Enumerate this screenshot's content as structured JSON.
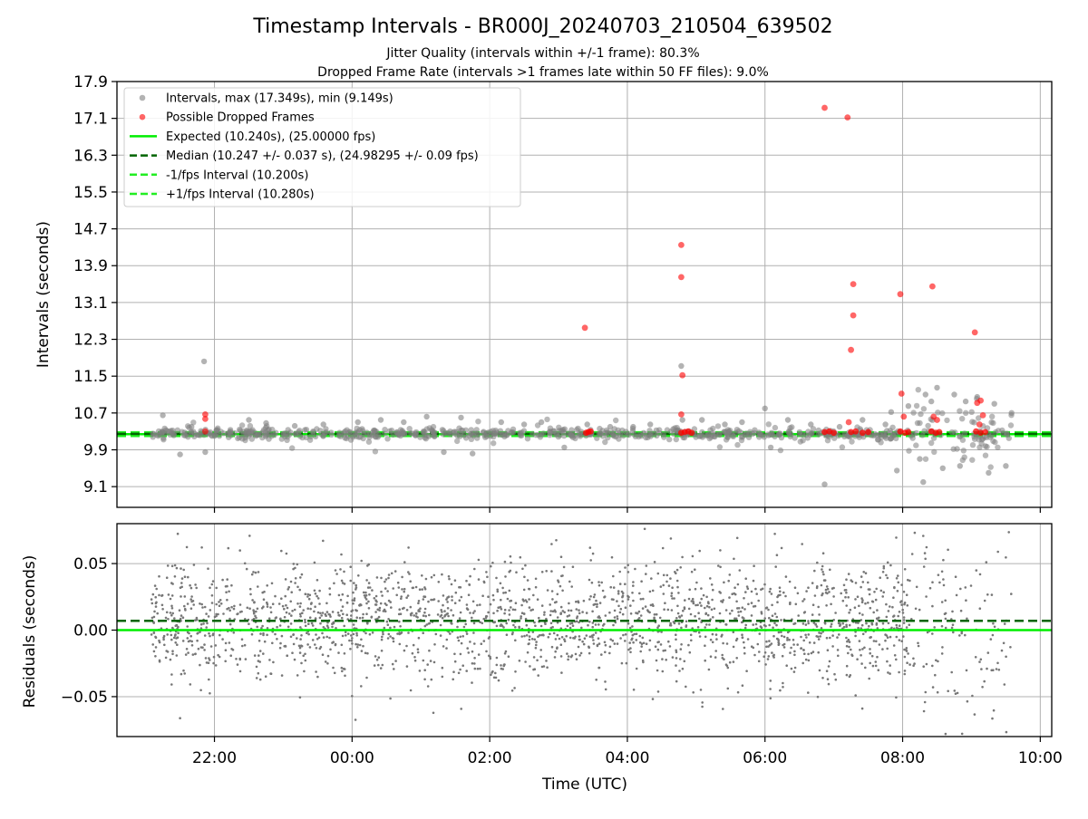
{
  "title": "Timestamp Intervals - BR000J_20240703_210504_639502",
  "subtitle1": "Jitter Quality (intervals within +/-1 frame): 80.3%",
  "subtitle2": "Dropped Frame Rate (intervals >1 frames late within 50 FF files): 9.0%",
  "colors": {
    "intervals": "#808080",
    "dropped": "#ff0000",
    "expected": "#00ee00",
    "median": "#006400",
    "fps_bounds": "#22ee22",
    "grid": "#b0b0b0"
  },
  "chart_data": [
    {
      "type": "scatter",
      "panel": "top",
      "ylabel": "Intervals (seconds)",
      "xlabel": "",
      "ylim": [
        8.65,
        17.9
      ],
      "xlim": [
        "20:35",
        "10:10"
      ],
      "yticks": [
        "9.1",
        "9.9",
        "10.7",
        "11.5",
        "12.3",
        "13.1",
        "13.9",
        "14.7",
        "15.5",
        "16.3",
        "17.1",
        "17.9"
      ],
      "grid": true,
      "legend_position": "top-left",
      "legend": [
        {
          "label": "Intervals, max (17.349s), min (9.149s)",
          "marker": "dot",
          "color": "#808080"
        },
        {
          "label": "Possible Dropped Frames",
          "marker": "dot",
          "color": "#ff0000"
        },
        {
          "label": "Expected (10.240s), (25.00000 fps)",
          "marker": "solid",
          "color": "#00ee00"
        },
        {
          "label": "Median (10.247 +/- 0.037 s), (24.98295 +/- 0.09 fps)",
          "marker": "dashed",
          "color": "#006400"
        },
        {
          "label": "-1/fps Interval (10.200s)",
          "marker": "dashed",
          "color": "#22ee22"
        },
        {
          "label": "+1/fps Interval (10.280s)",
          "marker": "dashed",
          "color": "#22ee22"
        }
      ],
      "lines": {
        "expected": 10.24,
        "median": 10.247,
        "minus_fps": 10.2,
        "plus_fps": 10.28
      },
      "series": [
        {
          "name": "Intervals, max (17.349s), min (9.149s)",
          "points": [
            [
              "21:51",
              11.82
            ],
            [
              "21:30",
              9.8
            ],
            [
              "21:52",
              9.85
            ],
            [
              "21:15",
              10.65
            ],
            [
              "21:40",
              10.4
            ],
            [
              "22:30",
              10.55
            ],
            [
              "22:45",
              10.48
            ],
            [
              "23:10",
              10.42
            ],
            [
              "23:35",
              10.45
            ],
            [
              "00:05",
              10.5
            ],
            [
              "00:25",
              10.55
            ],
            [
              "00:45",
              10.5
            ],
            [
              "01:05",
              10.62
            ],
            [
              "01:20",
              9.85
            ],
            [
              "01:35",
              10.6
            ],
            [
              "01:45",
              9.82
            ],
            [
              "02:10",
              10.5
            ],
            [
              "02:30",
              10.45
            ],
            [
              "02:45",
              10.5
            ],
            [
              "03:05",
              9.95
            ],
            [
              "03:25",
              10.45
            ],
            [
              "03:45",
              10.4
            ],
            [
              "04:05",
              10.4
            ],
            [
              "04:20",
              10.45
            ],
            [
              "04:40",
              10.35
            ],
            [
              "04:47",
              11.72
            ],
            [
              "04:48",
              10.55
            ],
            [
              "05:05",
              10.55
            ],
            [
              "05:25",
              10.45
            ],
            [
              "05:40",
              10.5
            ],
            [
              "06:00",
              10.8
            ],
            [
              "06:05",
              9.95
            ],
            [
              "06:20",
              10.55
            ],
            [
              "06:40",
              10.45
            ],
            [
              "06:52",
              9.15
            ],
            [
              "07:05",
              10.4
            ],
            [
              "07:25",
              10.55
            ],
            [
              "07:45",
              10.45
            ],
            [
              "07:50",
              10.72
            ],
            [
              "07:55",
              9.45
            ],
            [
              "08:05",
              10.85
            ],
            [
              "08:15",
              9.7
            ],
            [
              "08:20",
              11.1
            ],
            [
              "08:25",
              10.95
            ],
            [
              "08:30",
              11.25
            ],
            [
              "08:35",
              9.5
            ],
            [
              "08:45",
              11.1
            ],
            [
              "08:50",
              9.55
            ],
            [
              "08:55",
              10.95
            ],
            [
              "09:05",
              11.05
            ],
            [
              "09:15",
              9.4
            ],
            [
              "09:20",
              10.9
            ],
            [
              "09:30",
              9.55
            ],
            [
              "09:35",
              10.7
            ],
            [
              "08:18",
              9.2
            ]
          ]
        },
        {
          "name": "Possible Dropped Frames",
          "points": [
            [
              "21:52",
              10.67
            ],
            [
              "21:52",
              10.57
            ],
            [
              "21:52",
              10.3
            ],
            [
              "03:23",
              12.55
            ],
            [
              "04:47",
              14.35
            ],
            [
              "04:47",
              13.65
            ],
            [
              "04:48",
              11.52
            ],
            [
              "04:47",
              10.67
            ],
            [
              "06:52",
              17.33
            ],
            [
              "07:12",
              17.12
            ],
            [
              "07:17",
              13.5
            ],
            [
              "07:17",
              12.82
            ],
            [
              "07:15",
              12.07
            ],
            [
              "07:13",
              10.5
            ],
            [
              "07:58",
              13.28
            ],
            [
              "07:59",
              11.12
            ],
            [
              "08:01",
              10.62
            ],
            [
              "08:26",
              13.45
            ],
            [
              "08:27",
              10.62
            ],
            [
              "08:30",
              10.55
            ],
            [
              "09:03",
              12.45
            ],
            [
              "09:05",
              10.92
            ],
            [
              "09:08",
              10.97
            ],
            [
              "09:10",
              10.65
            ],
            [
              "09:07",
              10.45
            ]
          ]
        }
      ]
    },
    {
      "type": "scatter",
      "panel": "bottom",
      "ylabel": "Residuals (seconds)",
      "xlabel": "Time (UTC)",
      "ylim": [
        -0.08,
        0.08
      ],
      "yticks": [
        "0.05",
        "0.00",
        "−0.05"
      ],
      "xticks": [
        "22:00",
        "00:00",
        "02:00",
        "04:00",
        "06:00",
        "08:00",
        "10:00"
      ],
      "grid": true,
      "lines": {
        "expected": 0.0,
        "median": 0.007
      },
      "series": [
        {
          "name": "Residuals",
          "approximate_range": [
            -0.08,
            0.08
          ],
          "time_range": [
            "21:05",
            "09:35"
          ]
        }
      ]
    }
  ]
}
